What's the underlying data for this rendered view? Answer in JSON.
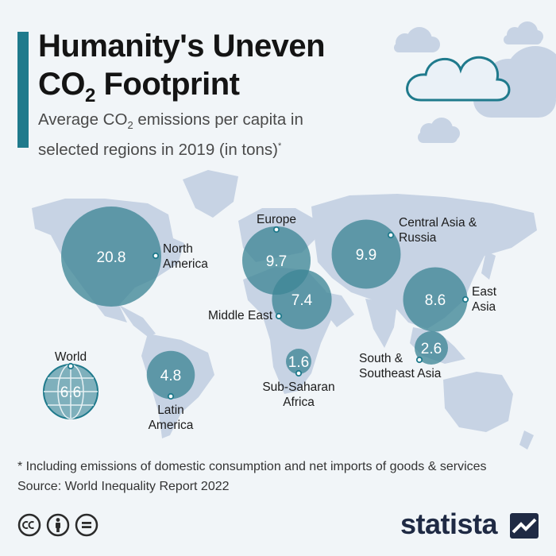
{
  "title": {
    "line1": "Humanity's Uneven",
    "line2_prefix": "CO",
    "line2_sub": "2",
    "line2_suffix": " Footprint"
  },
  "subtitle": {
    "line1_prefix": "Average CO",
    "line1_sub": "2",
    "line1_suffix": " emissions per capita in",
    "line2": "selected regions in 2019 (in tons)",
    "marker": "*"
  },
  "colors": {
    "accent": "#1f7a8c",
    "bubble": "#3f8796",
    "land": "#c7d3e4",
    "background": "#f1f5f8",
    "brand": "#1f2a44"
  },
  "map_data": {
    "unit": "tons CO2 per capita",
    "year": 2019,
    "regions": [
      {
        "label_lines": [
          "North",
          "America"
        ],
        "value": 20.8
      },
      {
        "label_lines": [
          "Europe"
        ],
        "value": 9.7
      },
      {
        "label_lines": [
          "Central Asia &",
          "Russia"
        ],
        "value": 9.9
      },
      {
        "label_lines": [
          "Middle East"
        ],
        "value": 7.4
      },
      {
        "label_lines": [
          "East",
          "Asia"
        ],
        "value": 8.6
      },
      {
        "label_lines": [
          "South &",
          "Southeast Asia"
        ],
        "value": 2.6
      },
      {
        "label_lines": [
          "Sub-Saharan",
          "Africa"
        ],
        "value": 1.6
      },
      {
        "label_lines": [
          "Latin",
          "America"
        ],
        "value": 4.8
      },
      {
        "label_lines": [
          "World"
        ],
        "value": 6.6
      }
    ]
  },
  "footnote": "* Including emissions of domestic consumption and net imports of goods & services",
  "source": "Source: World Inequality Report 2022",
  "license_icons": [
    "cc-icon",
    "attribution-icon",
    "no-derivatives-icon"
  ],
  "brand": "statista"
}
